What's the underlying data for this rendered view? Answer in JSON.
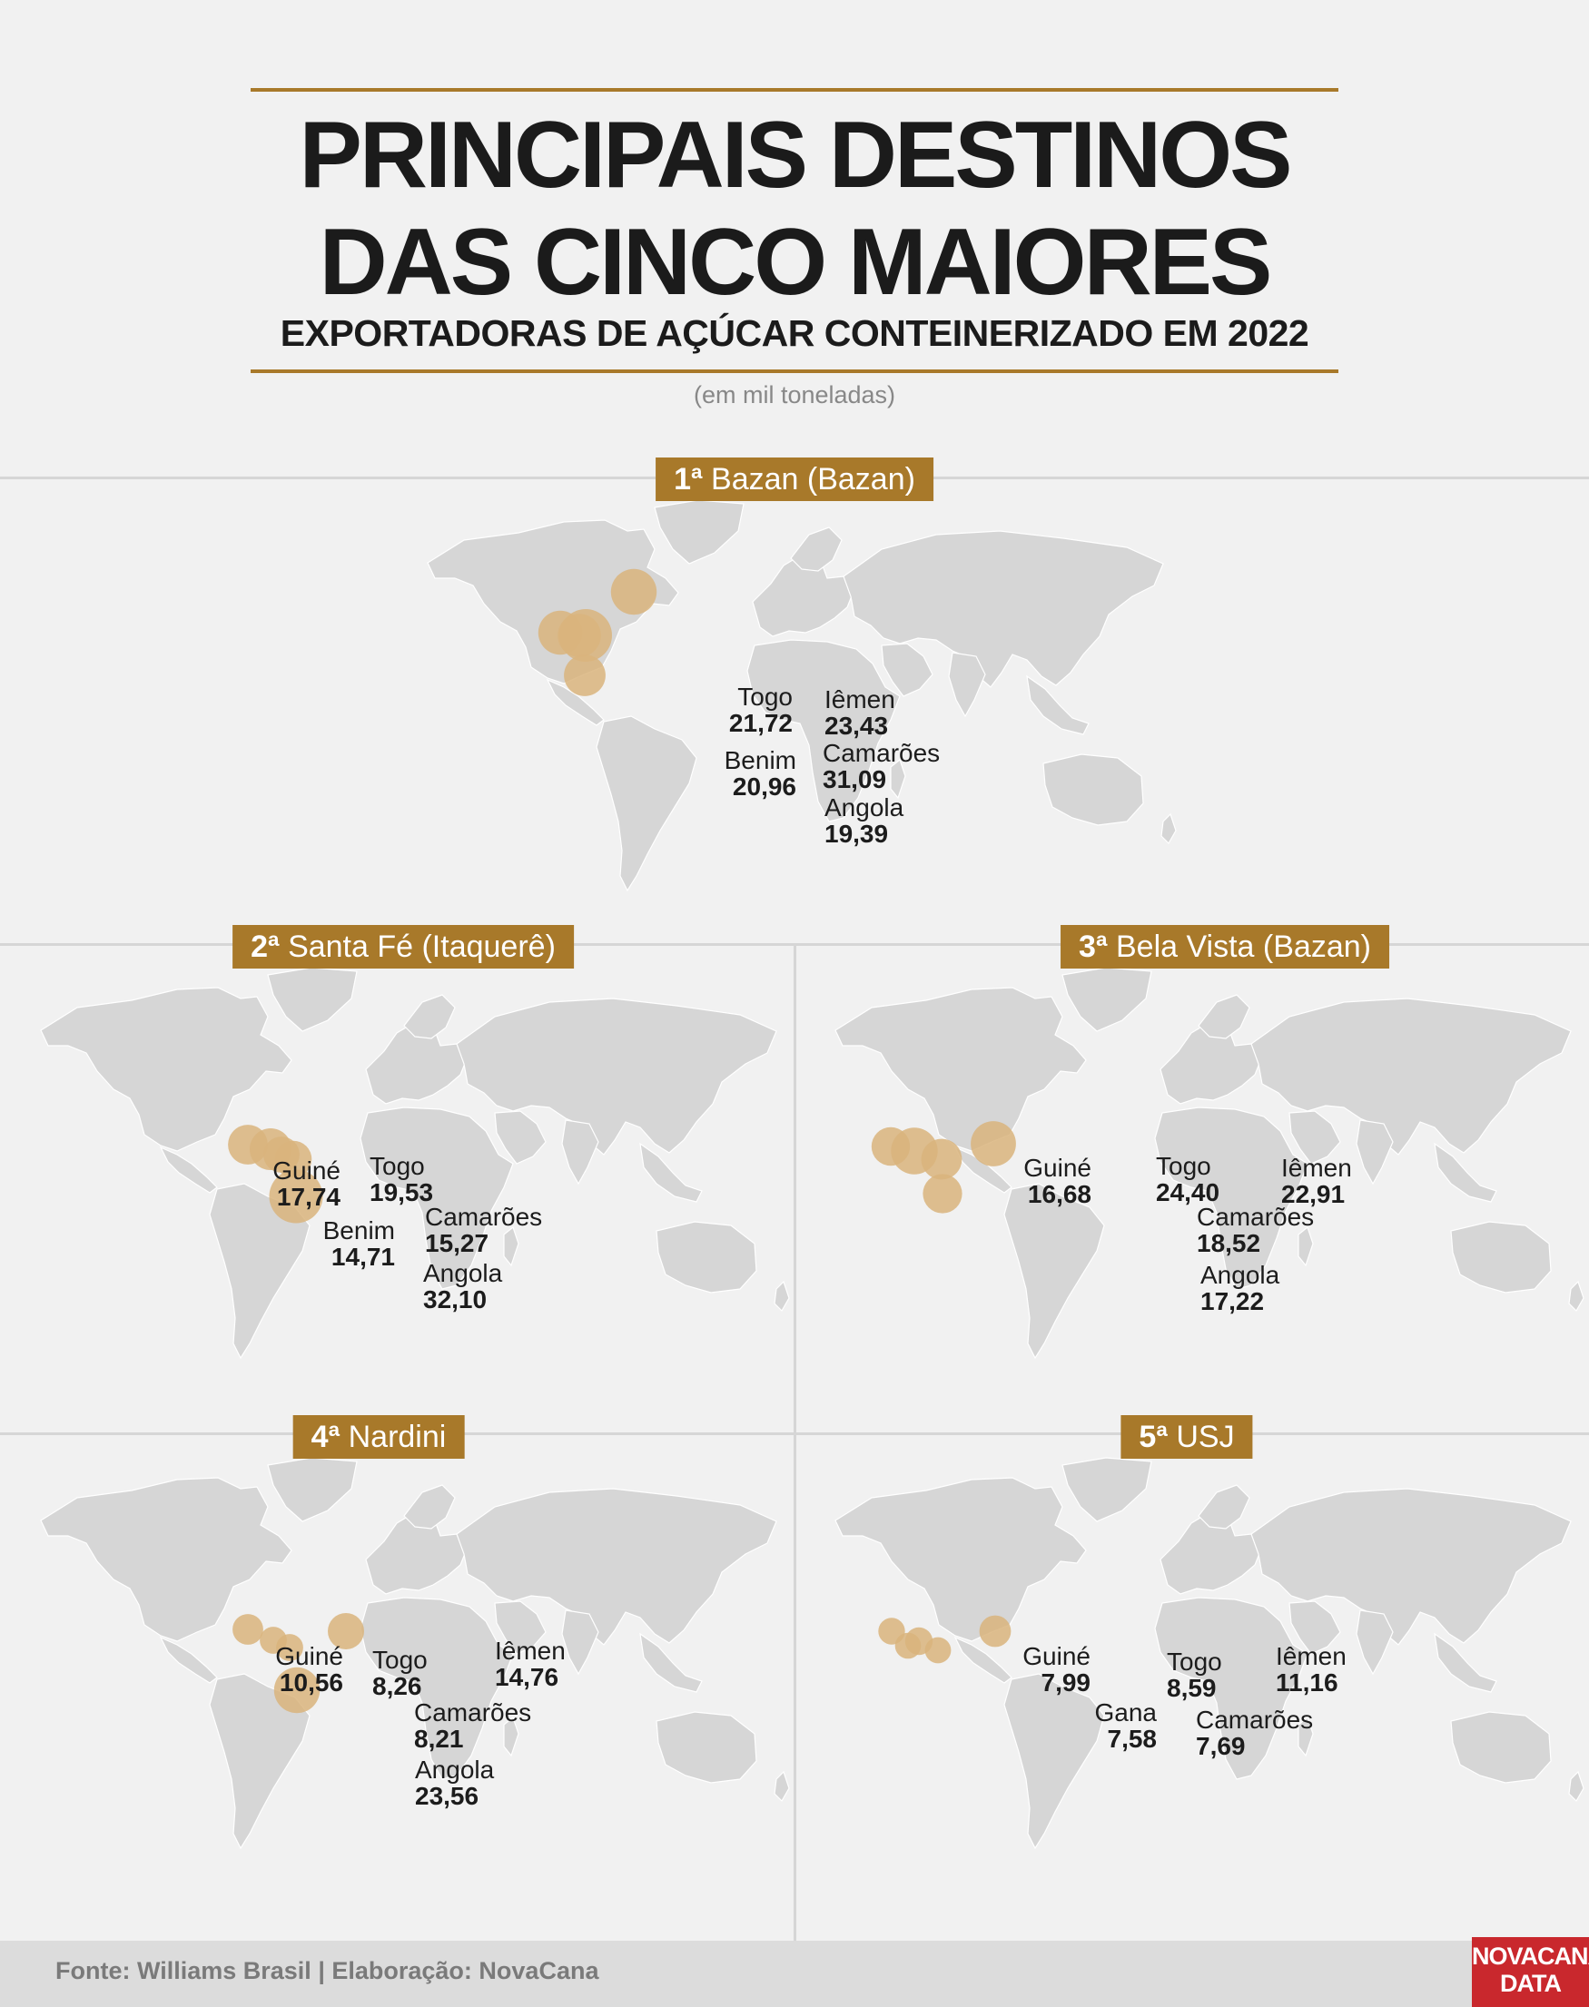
{
  "header": {
    "title_line1": "PRINCIPAIS DESTINOS",
    "title_line2": "DAS CINCO MAIORES",
    "title_line3": "EXPORTADORAS DE AÇÚCAR CONTEINERIZADO EM 2022",
    "unit": "(em mil toneladas)"
  },
  "colors": {
    "accent": "#a8792a",
    "land": "#d6d6d6",
    "bubble": "#d9b47c",
    "background": "#f1f1f1",
    "logo": "#c9282d"
  },
  "chart_data": [
    {
      "type": "scatter",
      "title_rank": "1ª",
      "title": "Bazan (Bazan)",
      "unit": "mil toneladas",
      "points": [
        {
          "name": "Togo",
          "value": "21,72",
          "num": 21.72
        },
        {
          "name": "Iêmen",
          "value": "23,43",
          "num": 23.43
        },
        {
          "name": "Benim",
          "value": "20,96",
          "num": 20.96
        },
        {
          "name": "Camarões",
          "value": "31,09",
          "num": 31.09
        },
        {
          "name": "Angola",
          "value": "19,39",
          "num": 19.39
        }
      ]
    },
    {
      "type": "scatter",
      "title_rank": "2ª",
      "title": "Santa Fé (Itaquerê)",
      "unit": "mil toneladas",
      "points": [
        {
          "name": "Guiné",
          "value": "17,74",
          "num": 17.74
        },
        {
          "name": "Togo",
          "value": "19,53",
          "num": 19.53
        },
        {
          "name": "Camarões",
          "value": "15,27",
          "num": 15.27
        },
        {
          "name": "Benim",
          "value": "14,71",
          "num": 14.71
        },
        {
          "name": "Angola",
          "value": "32,10",
          "num": 32.1
        }
      ]
    },
    {
      "type": "scatter",
      "title_rank": "3ª",
      "title": "Bela Vista (Bazan)",
      "unit": "mil toneladas",
      "points": [
        {
          "name": "Guiné",
          "value": "16,68",
          "num": 16.68
        },
        {
          "name": "Togo",
          "value": "24,40",
          "num": 24.4
        },
        {
          "name": "Iêmen",
          "value": "22,91",
          "num": 22.91
        },
        {
          "name": "Camarões",
          "value": "18,52",
          "num": 18.52
        },
        {
          "name": "Angola",
          "value": "17,22",
          "num": 17.22
        }
      ]
    },
    {
      "type": "scatter",
      "title_rank": "4ª",
      "title": "Nardini",
      "unit": "mil toneladas",
      "points": [
        {
          "name": "Guiné",
          "value": "10,56",
          "num": 10.56
        },
        {
          "name": "Togo",
          "value": "8,26",
          "num": 8.26
        },
        {
          "name": "Iêmen",
          "value": "14,76",
          "num": 14.76
        },
        {
          "name": "Camarões",
          "value": "8,21",
          "num": 8.21
        },
        {
          "name": "Angola",
          "value": "23,56",
          "num": 23.56
        }
      ]
    },
    {
      "type": "scatter",
      "title_rank": "5ª",
      "title": "USJ",
      "unit": "mil toneladas",
      "points": [
        {
          "name": "Guiné",
          "value": "7,99",
          "num": 7.99
        },
        {
          "name": "Togo",
          "value": "8,59",
          "num": 8.59
        },
        {
          "name": "Iêmen",
          "value": "11,16",
          "num": 11.16
        },
        {
          "name": "Gana",
          "value": "7,58",
          "num": 7.58
        },
        {
          "name": "Camarões",
          "value": "7,69",
          "num": 7.69
        }
      ]
    }
  ],
  "footer": {
    "source": "Fonte: Williams Brasil | Elaboração: NovaCana",
    "logo_line1": "NOVACANA",
    "logo_line2": "DATA"
  }
}
